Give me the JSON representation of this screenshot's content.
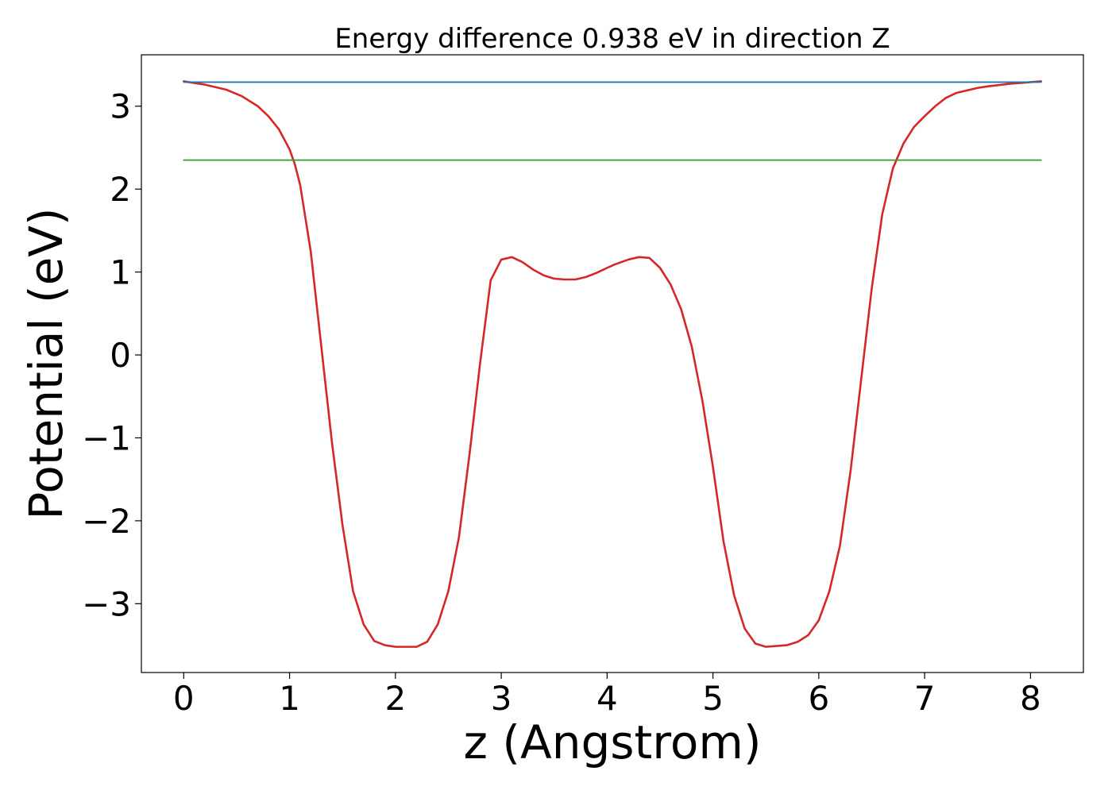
{
  "chart_data": {
    "type": "line",
    "title": "Energy difference 0.938 eV in direction Z",
    "xlabel": "z (Angstrom)",
    "ylabel": "Potential (eV)",
    "xlim": [
      -0.4,
      8.5
    ],
    "ylim": [
      -3.83,
      3.62
    ],
    "xticks": [
      0,
      1,
      2,
      3,
      4,
      5,
      6,
      7,
      8
    ],
    "yticks": [
      -3,
      -2,
      -1,
      0,
      1,
      2,
      3
    ],
    "xtick_labels": [
      "0",
      "1",
      "2",
      "3",
      "4",
      "5",
      "6",
      "7",
      "8"
    ],
    "ytick_labels": [
      "−3",
      "−2",
      "−1",
      "0",
      "1",
      "2",
      "3"
    ],
    "grid": false,
    "series": [
      {
        "color": "#d62728",
        "linewidth": 2.6,
        "x": [
          0.0,
          0.2,
          0.4,
          0.55,
          0.7,
          0.8,
          0.9,
          1.0,
          1.05,
          1.1,
          1.2,
          1.3,
          1.4,
          1.5,
          1.6,
          1.7,
          1.8,
          1.9,
          2.0,
          2.1,
          2.2,
          2.3,
          2.4,
          2.5,
          2.6,
          2.7,
          2.8,
          2.9,
          3.0,
          3.1,
          3.2,
          3.3,
          3.4,
          3.5,
          3.6,
          3.7,
          3.8,
          3.9,
          4.0,
          4.07,
          4.2,
          4.3,
          4.4,
          4.5,
          4.6,
          4.7,
          4.8,
          4.9,
          5.0,
          5.1,
          5.2,
          5.3,
          5.4,
          5.5,
          5.6,
          5.7,
          5.8,
          5.9,
          6.0,
          6.1,
          6.2,
          6.3,
          6.4,
          6.5,
          6.6,
          6.7,
          6.8,
          6.9,
          7.0,
          7.1,
          7.2,
          7.3,
          7.4,
          7.5,
          7.6,
          7.8,
          8.0,
          8.1
        ],
        "y": [
          3.3,
          3.26,
          3.2,
          3.12,
          3.0,
          2.88,
          2.72,
          2.48,
          2.3,
          2.05,
          1.25,
          0.1,
          -1.05,
          -2.05,
          -2.85,
          -3.25,
          -3.45,
          -3.5,
          -3.52,
          -3.52,
          -3.52,
          -3.46,
          -3.25,
          -2.85,
          -2.2,
          -1.2,
          -0.1,
          0.9,
          1.15,
          1.18,
          1.12,
          1.03,
          0.96,
          0.92,
          0.91,
          0.91,
          0.94,
          0.99,
          1.05,
          1.09,
          1.15,
          1.18,
          1.17,
          1.05,
          0.85,
          0.55,
          0.1,
          -0.55,
          -1.35,
          -2.25,
          -2.9,
          -3.3,
          -3.48,
          -3.52,
          -3.51,
          -3.5,
          -3.46,
          -3.38,
          -3.2,
          -2.85,
          -2.3,
          -1.4,
          -0.3,
          0.8,
          1.7,
          2.25,
          2.55,
          2.75,
          2.88,
          3.0,
          3.1,
          3.16,
          3.19,
          3.22,
          3.24,
          3.27,
          3.29,
          3.3
        ]
      },
      {
        "color": "#1f77b4",
        "linewidth": 1.8,
        "x": [
          0.0,
          8.1
        ],
        "y": [
          3.29,
          3.29
        ]
      },
      {
        "color": "#2ca02c",
        "linewidth": 1.8,
        "x": [
          0.0,
          8.1
        ],
        "y": [
          2.35,
          2.35
        ]
      }
    ]
  }
}
